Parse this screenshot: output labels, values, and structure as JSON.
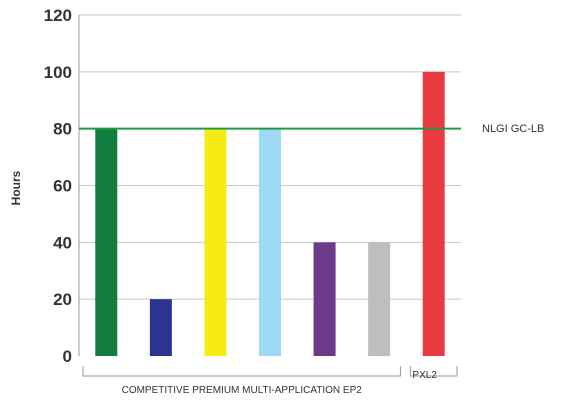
{
  "chart_data": {
    "type": "bar",
    "ylabel": "Hours",
    "ylim": [
      0,
      120
    ],
    "yticks": [
      0,
      20,
      40,
      60,
      80,
      100,
      120
    ],
    "grid": true,
    "bars": [
      {
        "value": 80,
        "color": "#117c3e"
      },
      {
        "value": 20,
        "color": "#2b3490"
      },
      {
        "value": 80,
        "color": "#f6eb14"
      },
      {
        "value": 80,
        "color": "#9ed9f6"
      },
      {
        "value": 40,
        "color": "#6b3a8b"
      },
      {
        "value": 40,
        "color": "#bebebe"
      },
      {
        "value": 100,
        "color": "#e83a3f"
      }
    ],
    "groups": [
      {
        "label": "COMPETITIVE PREMIUM MULTI-APPLICATION EP2",
        "bar_indices": [
          0,
          1,
          2,
          3,
          4,
          5
        ]
      },
      {
        "label": "PXL2",
        "bar_indices": [
          6
        ]
      }
    ],
    "reference_line": {
      "value": 80,
      "label": "NLGI GC-LB",
      "color": "#1f9a3f"
    }
  }
}
